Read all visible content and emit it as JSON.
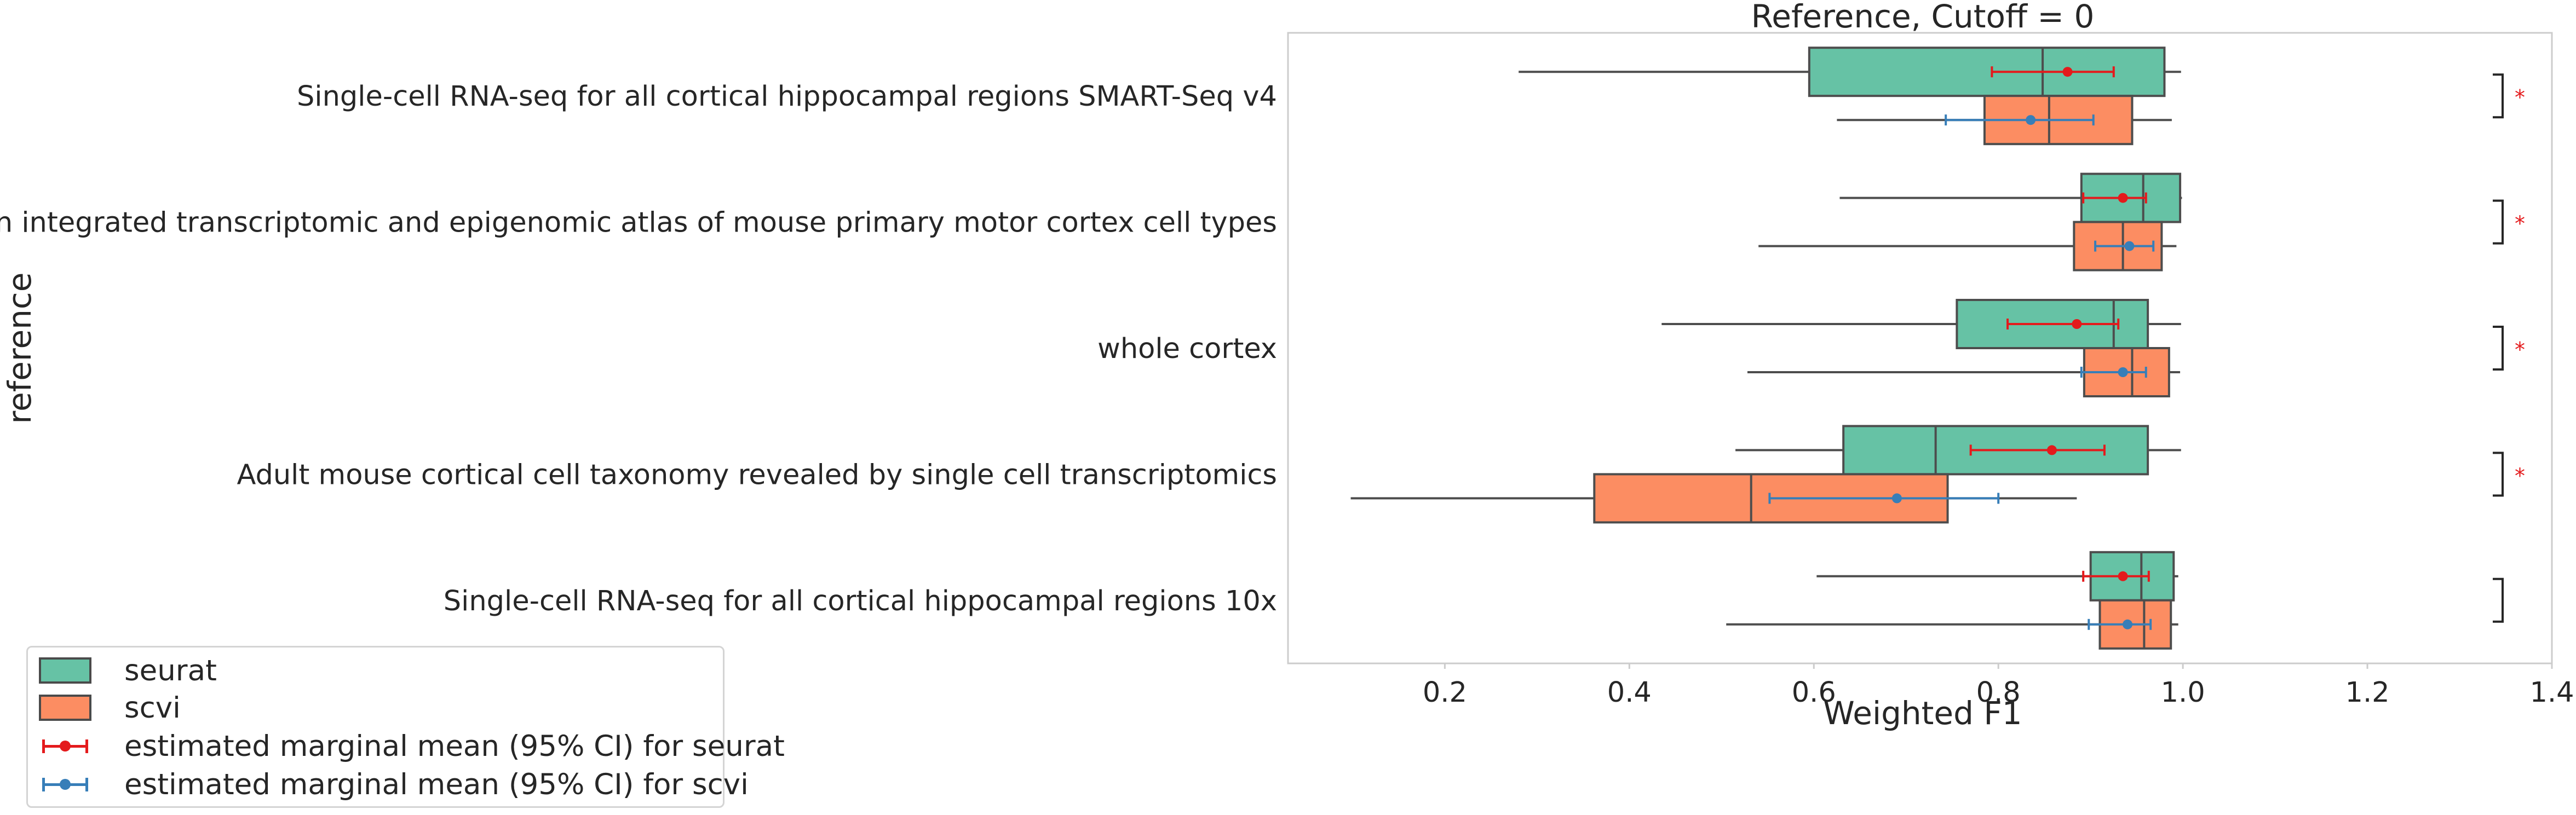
{
  "chart_data": {
    "type": "box",
    "title": "Reference, Cutoff = 0",
    "xlabel": "Weighted F1",
    "ylabel": "reference",
    "xlim": [
      0.03,
      1.4
    ],
    "xticks": [
      0.2,
      0.4,
      0.6,
      0.8,
      1.0,
      1.2,
      1.4
    ],
    "xtick_labels": [
      "0.2",
      "0.4",
      "0.6",
      "0.8",
      "1.0",
      "1.2",
      "1.4"
    ],
    "grid": false,
    "legend_position": "bottom-left",
    "categories": [
      "Single-cell RNA-seq for all cortical  hippocampal regions SMART-Seq v4",
      "An integrated transcriptomic and epigenomic atlas of mouse primary motor cortex cell types",
      "whole cortex",
      "Adult mouse cortical cell taxonomy revealed by single cell transcriptomics",
      "Single-cell RNA-seq for all cortical  hippocampal regions 10x"
    ],
    "series": [
      {
        "name": "seurat",
        "color": "#66c2a5",
        "boxes": [
          {
            "min": 0.28,
            "q1": 0.595,
            "median": 0.848,
            "q3": 0.98,
            "max": 0.998
          },
          {
            "min": 0.628,
            "q1": 0.89,
            "median": 0.957,
            "q3": 0.997,
            "max": 0.999
          },
          {
            "min": 0.435,
            "q1": 0.755,
            "median": 0.925,
            "q3": 0.962,
            "max": 0.998
          },
          {
            "min": 0.515,
            "q1": 0.632,
            "median": 0.732,
            "q3": 0.962,
            "max": 0.998
          },
          {
            "min": 0.603,
            "q1": 0.9,
            "median": 0.955,
            "q3": 0.99,
            "max": 0.995
          }
        ],
        "emm": [
          {
            "mean": 0.875,
            "lo": 0.793,
            "hi": 0.925
          },
          {
            "mean": 0.935,
            "lo": 0.892,
            "hi": 0.96
          },
          {
            "mean": 0.885,
            "lo": 0.81,
            "hi": 0.93
          },
          {
            "mean": 0.858,
            "lo": 0.77,
            "hi": 0.915
          },
          {
            "mean": 0.935,
            "lo": 0.892,
            "hi": 0.963
          }
        ]
      },
      {
        "name": "scvi",
        "color": "#fc8d62",
        "boxes": [
          {
            "min": 0.625,
            "q1": 0.785,
            "median": 0.855,
            "q3": 0.945,
            "max": 0.988
          },
          {
            "min": 0.54,
            "q1": 0.882,
            "median": 0.935,
            "q3": 0.977,
            "max": 0.993
          },
          {
            "min": 0.528,
            "q1": 0.893,
            "median": 0.945,
            "q3": 0.985,
            "max": 0.997
          },
          {
            "min": 0.098,
            "q1": 0.362,
            "median": 0.532,
            "q3": 0.745,
            "max": 0.885
          },
          {
            "min": 0.505,
            "q1": 0.91,
            "median": 0.958,
            "q3": 0.987,
            "max": 0.995
          }
        ],
        "emm": [
          {
            "mean": 0.835,
            "lo": 0.743,
            "hi": 0.903
          },
          {
            "mean": 0.942,
            "lo": 0.905,
            "hi": 0.968
          },
          {
            "mean": 0.935,
            "lo": 0.89,
            "hi": 0.96
          },
          {
            "mean": 0.69,
            "lo": 0.552,
            "hi": 0.8
          },
          {
            "mean": 0.94,
            "lo": 0.898,
            "hi": 0.965
          }
        ]
      }
    ],
    "significance": [
      "*",
      "*",
      "*",
      "*",
      ""
    ],
    "emm_colors": {
      "seurat": "#e41a1c",
      "scvi": "#377eb8"
    }
  },
  "legend": {
    "seurat_label": "seurat",
    "scvi_label": "scvi",
    "emm_seurat_label": "estimated marginal mean (95% CI) for seurat",
    "emm_scvi_label": "estimated marginal mean (95% CI) for scvi"
  }
}
